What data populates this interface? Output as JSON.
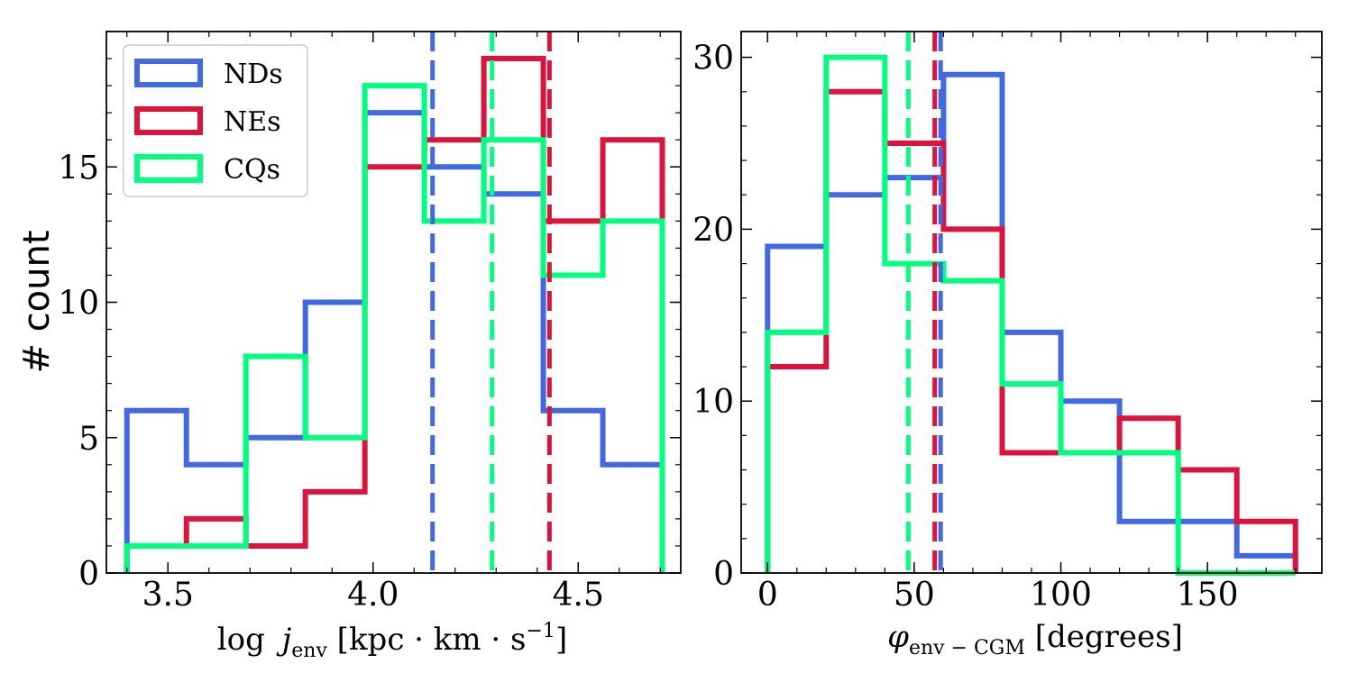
{
  "chart_data": [
    {
      "type": "histogram",
      "xlabel": {
        "main": "log",
        "var": "j",
        "sub": "env",
        "unit_open": " [kpc · km · s",
        "sup": "−1",
        "unit_close": "]"
      },
      "ylabel": "# count",
      "xlim": [
        3.35,
        4.75
      ],
      "ylim": [
        0,
        20
      ],
      "xticks": [
        3.5,
        4.0,
        4.5
      ],
      "xtick_labels": [
        "3.5",
        "4.0",
        "4.5"
      ],
      "yticks": [
        0,
        5,
        10,
        15
      ],
      "ytick_labels": [
        "0",
        "5",
        "10",
        "15"
      ],
      "bin_edges": [
        3.4,
        3.545,
        3.69,
        3.835,
        3.98,
        4.125,
        4.27,
        4.415,
        4.56,
        4.705
      ],
      "series": [
        {
          "name": "NDs",
          "color": "#4169e1",
          "values": [
            6,
            4,
            5,
            10,
            17,
            15,
            14,
            6,
            4
          ],
          "median": 4.145
        },
        {
          "name": "NEs",
          "color": "#dc143c",
          "values": [
            1,
            2,
            1,
            3,
            15,
            16,
            19,
            13,
            16
          ],
          "median": 4.43
        },
        {
          "name": "CQs",
          "color": "#00ff7f",
          "values": [
            1,
            1,
            8,
            5,
            18,
            13,
            16,
            11,
            13
          ],
          "median": 4.29
        }
      ],
      "legend": {
        "position": "top-left",
        "entries": [
          "NDs",
          "NEs",
          "CQs"
        ]
      }
    },
    {
      "type": "histogram",
      "xlabel": {
        "var": "φ",
        "sub": "env − CGM",
        "unit": " [degrees]"
      },
      "ylabel": "",
      "xlim": [
        -9,
        189
      ],
      "ylim": [
        0,
        31.5
      ],
      "xticks": [
        0,
        50,
        100,
        150
      ],
      "xtick_labels": [
        "0",
        "50",
        "100",
        "150"
      ],
      "yticks": [
        0,
        10,
        20,
        30
      ],
      "ytick_labels": [
        "0",
        "10",
        "20",
        "30"
      ],
      "bin_edges": [
        0,
        20,
        40,
        60,
        80,
        100,
        120,
        140,
        160,
        180
      ],
      "series": [
        {
          "name": "NDs",
          "color": "#4169e1",
          "values": [
            19,
            22,
            23,
            29,
            14,
            10,
            3,
            3,
            1
          ],
          "median": 59
        },
        {
          "name": "NEs",
          "color": "#dc143c",
          "values": [
            12,
            28,
            25,
            20,
            7,
            7,
            9,
            6,
            3
          ],
          "median": 57
        },
        {
          "name": "CQs",
          "color": "#00ff7f",
          "values": [
            14,
            30,
            18,
            17,
            11,
            7,
            7,
            0,
            0
          ],
          "median": 48
        }
      ]
    }
  ]
}
